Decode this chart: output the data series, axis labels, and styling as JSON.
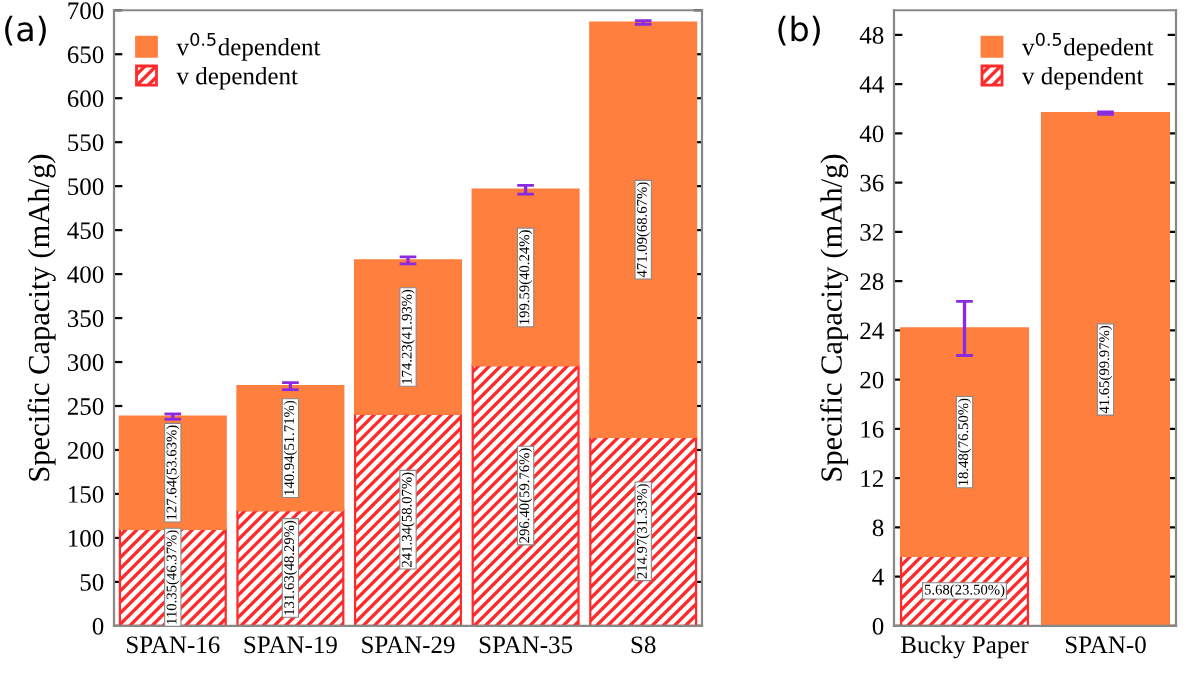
{
  "chart_data": [
    {
      "type": "bar",
      "stacked": true,
      "ylabel": "Specific Capacity (mAh/g)",
      "categories": [
        "SPAN-16",
        "SPAN-19",
        "SPAN-29",
        "SPAN-35",
        "S8"
      ],
      "ylim": [
        0,
        700
      ],
      "yticks": [
        0,
        50,
        100,
        150,
        200,
        250,
        300,
        350,
        400,
        450,
        500,
        550,
        600,
        650,
        700
      ],
      "legend": "top left",
      "grid": false,
      "annotations": [
        "(a)"
      ],
      "series": [
        {
          "name": "v dependent",
          "color": "#ff2a2a",
          "values": [
            110.35,
            131.63,
            241.34,
            296.4,
            214.97
          ],
          "value_labels": [
            "110.35(46.37%)",
            "131.63(48.29%)",
            "241.34(58.07%)",
            "296.40(59.76%)",
            "214.97(31.33%)"
          ]
        },
        {
          "name": "v$^{0.5}$dependent",
          "color": "#ff7f3f",
          "values": [
            127.64,
            140.94,
            174.23,
            199.59,
            471.09
          ],
          "value_labels": [
            "127.64(53.63%)",
            "140.94(51.71%)",
            "174.23(41.93%)",
            "199.59(40.24%)",
            "471.09(68.67%)"
          ],
          "errors": [
            3,
            4,
            4,
            5,
            2
          ]
        }
      ]
    },
    {
      "type": "bar",
      "stacked": true,
      "ylabel": "Specific Capacity (mAh/g)",
      "categories": [
        "Bucky Paper",
        "SPAN-0"
      ],
      "ylim": [
        0,
        50
      ],
      "yticks": [
        0,
        4,
        8,
        12,
        16,
        20,
        24,
        28,
        32,
        36,
        40,
        44,
        48
      ],
      "legend": "top right",
      "grid": false,
      "annotations": [
        "(b)"
      ],
      "series": [
        {
          "name": "v dependent",
          "color": "#ff2a2a",
          "values": [
            5.68,
            0
          ],
          "value_labels": [
            "5.68(23.50%)",
            null
          ]
        },
        {
          "name": "v$^{0.5}$depedent",
          "color": "#ff7f3f",
          "values": [
            18.48,
            41.65
          ],
          "value_labels": [
            "18.48(76.50%)",
            "41.65(99.97%)"
          ],
          "errors": [
            2.2,
            0.1
          ]
        }
      ]
    }
  ]
}
